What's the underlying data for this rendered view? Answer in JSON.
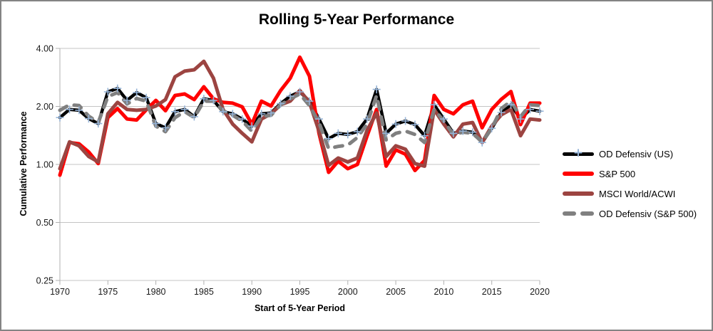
{
  "window": {
    "background": "#FFFFFF",
    "border_color": "#848484"
  },
  "chart_data": {
    "type": "line",
    "title": "Rolling 5-Year Performance",
    "xlabel": "Start of 5-Year Period",
    "ylabel": "Cumulative Performance",
    "y_scale": "log2",
    "ylim": [
      0.25,
      4.0
    ],
    "xlim": [
      1970,
      2020
    ],
    "grid": true,
    "gridline_color": "#C4C4C4",
    "axis_color": "#B0B0B0",
    "tick_label_color": "#1a1a1a",
    "legend_position": "right",
    "marker_glyph": "+",
    "y_ticks": [
      4.0,
      2.0,
      1.0,
      0.5,
      0.25
    ],
    "y_tick_labels": [
      "4.00",
      "2.00",
      "1.00",
      "0.50",
      "0.25"
    ],
    "x_ticks": [
      1970,
      1975,
      1980,
      1985,
      1990,
      1995,
      2000,
      2005,
      2010,
      2015,
      2020
    ],
    "x_tick_labels": [
      "1970",
      "1975",
      "1980",
      "1985",
      "1990",
      "1995",
      "2000",
      "2005",
      "2010",
      "2015",
      "2020"
    ],
    "years": [
      1970,
      1971,
      1972,
      1973,
      1974,
      1975,
      1976,
      1977,
      1978,
      1979,
      1980,
      1981,
      1982,
      1983,
      1984,
      1985,
      1986,
      1987,
      1988,
      1989,
      1990,
      1991,
      1992,
      1993,
      1994,
      1995,
      1996,
      1997,
      1998,
      1999,
      2000,
      2001,
      2002,
      2003,
      2004,
      2005,
      2006,
      2007,
      2008,
      2009,
      2010,
      2011,
      2012,
      2013,
      2014,
      2015,
      2016,
      2017,
      2018,
      2019,
      2020
    ],
    "series": [
      {
        "name": "OD Defensiv (US)",
        "color": "#000000",
        "width": 4.5,
        "dash": null,
        "marker": "plus",
        "marker_color": "#95B3D7",
        "values": [
          1.75,
          1.93,
          1.91,
          1.73,
          1.63,
          2.38,
          2.48,
          2.15,
          2.36,
          2.22,
          1.63,
          1.55,
          1.88,
          1.93,
          1.77,
          2.19,
          2.15,
          1.88,
          1.83,
          1.72,
          1.58,
          1.83,
          1.85,
          2.07,
          2.26,
          2.38,
          2.13,
          1.72,
          1.36,
          1.45,
          1.43,
          1.48,
          1.72,
          2.45,
          1.45,
          1.62,
          1.68,
          1.61,
          1.41,
          2.04,
          1.72,
          1.45,
          1.49,
          1.47,
          1.3,
          1.54,
          1.86,
          2.04,
          1.72,
          1.93,
          1.89
        ]
      },
      {
        "name": "S&P 500",
        "color": "#FF0000",
        "width": 5,
        "dash": null,
        "marker": null,
        "marker_color": null,
        "values": [
          0.88,
          1.3,
          1.28,
          1.16,
          1.01,
          1.75,
          1.95,
          1.72,
          1.7,
          1.92,
          2.15,
          1.9,
          2.28,
          2.32,
          2.17,
          2.53,
          2.19,
          2.1,
          2.08,
          1.99,
          1.62,
          2.13,
          2.01,
          2.42,
          2.8,
          3.6,
          2.87,
          1.45,
          0.91,
          1.04,
          0.95,
          1.0,
          1.4,
          1.93,
          0.98,
          1.19,
          1.13,
          0.93,
          1.05,
          2.28,
          1.93,
          1.83,
          2.04,
          2.13,
          1.55,
          1.93,
          2.18,
          2.39,
          1.61,
          2.08,
          2.08
        ]
      },
      {
        "name": "MSCI World/ACWI",
        "color": "#9C4441",
        "width": 5,
        "dash": null,
        "marker": null,
        "marker_color": null,
        "values": [
          0.95,
          1.31,
          1.25,
          1.1,
          1.03,
          1.83,
          2.1,
          1.93,
          1.91,
          1.93,
          2.01,
          2.17,
          2.85,
          3.05,
          3.1,
          3.43,
          2.8,
          1.93,
          1.62,
          1.45,
          1.31,
          1.72,
          1.83,
          2.04,
          2.13,
          2.42,
          2.1,
          1.49,
          0.99,
          1.08,
          1.03,
          1.08,
          1.5,
          1.85,
          1.1,
          1.25,
          1.2,
          1.01,
          0.98,
          1.93,
          1.62,
          1.39,
          1.62,
          1.65,
          1.3,
          1.58,
          1.81,
          1.93,
          1.41,
          1.72,
          1.7
        ]
      },
      {
        "name": "OD Defensiv (S&P 500)",
        "color": "#808080",
        "width": 5,
        "dash": "11 11",
        "marker": null,
        "marker_color": null,
        "values": [
          1.91,
          2.04,
          2.02,
          1.78,
          1.65,
          2.25,
          2.36,
          2.06,
          2.2,
          2.13,
          1.58,
          1.48,
          1.75,
          1.88,
          1.75,
          2.13,
          2.13,
          1.9,
          1.8,
          1.68,
          1.49,
          1.77,
          1.8,
          2.04,
          2.19,
          2.32,
          2.02,
          1.65,
          1.21,
          1.24,
          1.26,
          1.38,
          1.62,
          2.28,
          1.34,
          1.45,
          1.49,
          1.43,
          1.3,
          1.93,
          1.68,
          1.43,
          1.47,
          1.45,
          1.31,
          1.54,
          1.95,
          2.13,
          1.77,
          2.04,
          2.02
        ]
      }
    ]
  }
}
